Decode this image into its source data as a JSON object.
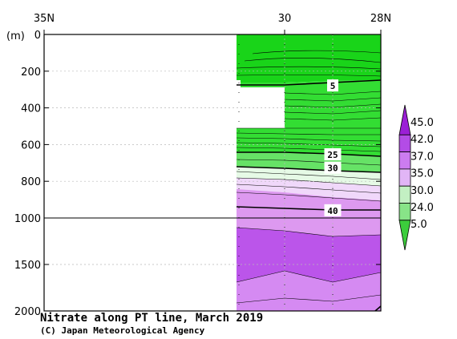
{
  "title": "Nitrate along PT line, March 2019",
  "credit": "(C) Japan Meteorological Agency",
  "chart_data": {
    "type": "contour",
    "title": "Nitrate along PT line, March 2019",
    "y_unit_label": "(m)",
    "x_ticks": [
      {
        "lat": 35,
        "label": "35N"
      },
      {
        "lat": 30,
        "label": "30"
      },
      {
        "lat": 28,
        "label": "28N"
      }
    ],
    "y_ticks": [
      {
        "depth": 0,
        "label": "0"
      },
      {
        "depth": 200,
        "label": "200"
      },
      {
        "depth": 400,
        "label": "400"
      },
      {
        "depth": 600,
        "label": "600"
      },
      {
        "depth": 800,
        "label": "800"
      },
      {
        "depth": 1000,
        "label": "1000"
      },
      {
        "depth": 1500,
        "label": "1500"
      },
      {
        "depth": 2000,
        "label": "2000"
      }
    ],
    "x_range": [
      35,
      28
    ],
    "y_range": [
      0,
      2000
    ],
    "y_scale_break_depth": 1000,
    "grid": true,
    "contour_labels": [
      {
        "text": "5",
        "lat": 29.0,
        "depth": 280
      },
      {
        "text": "25",
        "lat": 29.0,
        "depth": 655
      },
      {
        "text": "30",
        "lat": 29.0,
        "depth": 728
      },
      {
        "text": "40",
        "lat": 29.0,
        "depth": 960
      }
    ],
    "colorbar": {
      "labels": [
        "45.0",
        "42.0",
        "37.0",
        "35.0",
        "30.0",
        "24.0",
        "5.0"
      ],
      "colors": [
        "#9b1fd6",
        "#b34ce6",
        "#cc7cf0",
        "#e1b5f6",
        "#c3f0c3",
        "#88e488",
        "#3ccd3c"
      ]
    },
    "colors": {
      "green": "#19d419",
      "light_green": "#33dd33",
      "pale_green": "#e6fae6",
      "pale_purple": "#f0d8fa",
      "light_purple": "#dd99f0",
      "medium_purple": "#c866ee",
      "deep_purple": "#b04ae8"
    }
  }
}
